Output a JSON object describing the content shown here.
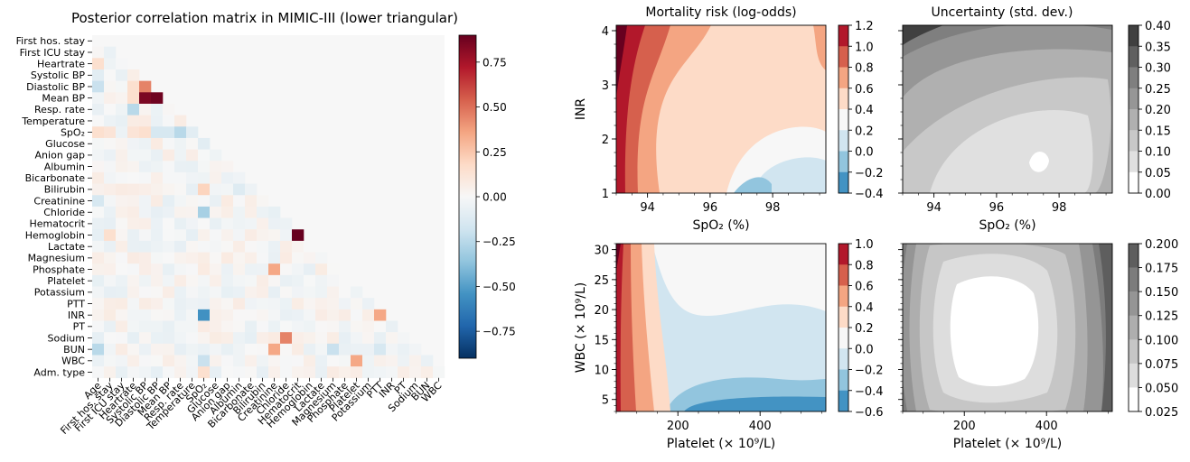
{
  "chart_data": [
    {
      "type": "heatmap",
      "title": "Posterior correlation matrix in MIMIC-III (lower triangular)",
      "row_labels": [
        "First hos. stay",
        "First ICU stay",
        "Heartrate",
        "Systolic BP",
        "Diastolic BP",
        "Mean BP",
        "Resp. rate",
        "Temperature",
        "SpO₂",
        "Glucose",
        "Anion gap",
        "Albumin",
        "Bicarbonate",
        "Bilirubin",
        "Creatinine",
        "Chloride",
        "Hematocrit",
        "Hemoglobin",
        "Lactate",
        "Magnesium",
        "Phosphate",
        "Platelet",
        "Potassium",
        "PTT",
        "INR",
        "PT",
        "Sodium",
        "BUN",
        "WBC",
        "Adm. type"
      ],
      "col_labels": [
        "Age",
        "First hos. stay",
        "First ICU stay",
        "Heartrate",
        "Systolic BP",
        "Diastolic BP",
        "Mean BP",
        "Resp. rate",
        "Temperature",
        "SpO₂",
        "Glucose",
        "Anion gap",
        "Albumin",
        "Bicarbonate",
        "Bilirubin",
        "Creatinine",
        "Chloride",
        "Hematocrit",
        "Hemoglobin",
        "Lactate",
        "Magnesium",
        "Phosphate",
        "Platelet",
        "Potassium",
        "PTT",
        "INR",
        "PT",
        "Sodium",
        "BUN",
        "WBC"
      ],
      "strong_cells": [
        {
          "row": "Heartrate",
          "col": "Age",
          "value": 0.15
        },
        {
          "row": "Systolic BP",
          "col": "Age",
          "value": -0.1
        },
        {
          "row": "Diastolic BP",
          "col": "Age",
          "value": -0.2
        },
        {
          "row": "Diastolic BP",
          "col": "Heartrate",
          "value": 0.15
        },
        {
          "row": "Diastolic BP",
          "col": "Systolic BP",
          "value": 0.45
        },
        {
          "row": "Mean BP",
          "col": "Systolic BP",
          "value": 0.85
        },
        {
          "row": "Mean BP",
          "col": "Diastolic BP",
          "value": 0.88
        },
        {
          "row": "Mean BP",
          "col": "Heartrate",
          "value": 0.15
        },
        {
          "row": "Resp. rate",
          "col": "Heartrate",
          "value": -0.25
        },
        {
          "row": "SpO₂",
          "col": "Age",
          "value": 0.15
        },
        {
          "row": "SpO₂",
          "col": "First hos. stay",
          "value": 0.12
        },
        {
          "row": "SpO₂",
          "col": "Heartrate",
          "value": 0.12
        },
        {
          "row": "SpO₂",
          "col": "Systolic BP",
          "value": 0.15
        },
        {
          "row": "SpO₂",
          "col": "Diastolic BP",
          "value": -0.15
        },
        {
          "row": "SpO₂",
          "col": "Mean BP",
          "value": -0.15
        },
        {
          "row": "SpO₂",
          "col": "Resp. rate",
          "value": -0.25
        },
        {
          "row": "SpO₂",
          "col": "Temperature",
          "value": -0.1
        },
        {
          "row": "Glucose",
          "col": "SpO₂",
          "value": -0.1
        },
        {
          "row": "Bilirubin",
          "col": "SpO₂",
          "value": 0.2
        },
        {
          "row": "Bilirubin",
          "col": "Albumin",
          "value": -0.12
        },
        {
          "row": "Creatinine",
          "col": "Age",
          "value": -0.15
        },
        {
          "row": "Chloride",
          "col": "SpO₂",
          "value": -0.3
        },
        {
          "row": "Hemoglobin",
          "col": "Hematocrit",
          "value": 0.92
        },
        {
          "row": "Hemoglobin",
          "col": "First hos. stay",
          "value": 0.15
        },
        {
          "row": "Phosphate",
          "col": "Creatinine",
          "value": 0.35
        },
        {
          "row": "INR",
          "col": "SpO₂",
          "value": -0.55
        },
        {
          "row": "INR",
          "col": "PTT",
          "value": 0.35
        },
        {
          "row": "Sodium",
          "col": "Chloride",
          "value": 0.45
        },
        {
          "row": "BUN",
          "col": "Age",
          "value": -0.25
        },
        {
          "row": "BUN",
          "col": "Creatinine",
          "value": 0.35
        },
        {
          "row": "BUN",
          "col": "Magnesium",
          "value": -0.2
        },
        {
          "row": "BUN",
          "col": "PTT",
          "value": -0.15
        },
        {
          "row": "WBC",
          "col": "SpO₂",
          "value": -0.2
        },
        {
          "row": "WBC",
          "col": "Platelet",
          "value": 0.35
        },
        {
          "row": "Adm. type",
          "col": "SpO₂",
          "value": 0.15
        }
      ],
      "colorbar": {
        "range": [
          -0.9,
          0.9
        ],
        "ticks": [
          "0.75",
          "0.50",
          "0.25",
          "0.00",
          "−0.25",
          "−0.50",
          "−0.75"
        ],
        "tick_values": [
          0.75,
          0.5,
          0.25,
          0,
          -0.25,
          -0.5,
          -0.75
        ],
        "cmap": "RdBu_r"
      }
    },
    {
      "type": "contour",
      "title": "Mortality risk (log-odds)",
      "xlabel": "SpO₂ (%)",
      "ylabel": "INR",
      "xlim": [
        93,
        99.7
      ],
      "ylim": [
        1,
        4.1
      ],
      "xticks": [
        94,
        96,
        98
      ],
      "yticks": [
        1,
        2,
        3,
        4
      ],
      "levels": [
        -0.4,
        -0.2,
        0.0,
        0.2,
        0.4,
        0.6,
        0.8,
        1.0,
        1.2
      ],
      "level_labels": [
        "1.2",
        "1.0",
        "0.8",
        "0.6",
        "0.4",
        "0.2",
        "0.0",
        "−0.2",
        "−0.4"
      ],
      "minimum": {
        "x": 97.8,
        "y": 1.3
      }
    },
    {
      "type": "contour",
      "title": "Uncertainty (std. dev.)",
      "xlabel": "SpO₂ (%)",
      "ylabel": "",
      "xlim": [
        93,
        99.7
      ],
      "ylim": [
        1,
        4.1
      ],
      "xticks": [
        94,
        96,
        98
      ],
      "yticks": [
        1,
        2,
        3,
        4
      ],
      "levels": [
        0.0,
        0.05,
        0.1,
        0.15,
        0.2,
        0.25,
        0.3,
        0.35,
        0.4
      ],
      "level_labels": [
        "0.40",
        "0.35",
        "0.30",
        "0.25",
        "0.20",
        "0.15",
        "0.10",
        "0.05",
        "0.00"
      ],
      "minimum": {
        "x": 97.3,
        "y": 1.6
      }
    },
    {
      "type": "contour",
      "title": "",
      "xlabel": "Platelet (× 10⁹/L)",
      "ylabel": "WBC (× 10⁹/L)",
      "xlim": [
        50,
        560
      ],
      "ylim": [
        3,
        31
      ],
      "xticks": [
        200,
        400
      ],
      "yticks": [
        5,
        10,
        15,
        20,
        25,
        30
      ],
      "levels": [
        -0.6,
        -0.4,
        -0.2,
        0.0,
        0.2,
        0.4,
        0.6,
        0.8,
        1.0
      ],
      "level_labels": [
        "1.0",
        "0.8",
        "0.6",
        "0.4",
        "0.2",
        "0.0",
        "−0.2",
        "−0.4",
        "−0.6"
      ]
    },
    {
      "type": "contour",
      "title": "",
      "xlabel": "Platelet (× 10⁹/L)",
      "ylabel": "",
      "xlim": [
        50,
        560
      ],
      "ylim": [
        3,
        31
      ],
      "xticks": [
        200,
        400
      ],
      "yticks": [
        5,
        10,
        15,
        20,
        25,
        30
      ],
      "levels": [
        0.025,
        0.05,
        0.075,
        0.1,
        0.125,
        0.15,
        0.175,
        0.2
      ],
      "level_labels": [
        "0.200",
        "0.175",
        "0.150",
        "0.125",
        "0.100",
        "0.075",
        "0.050",
        "0.025"
      ],
      "minimum": {
        "x": 240,
        "y": 15
      }
    }
  ]
}
